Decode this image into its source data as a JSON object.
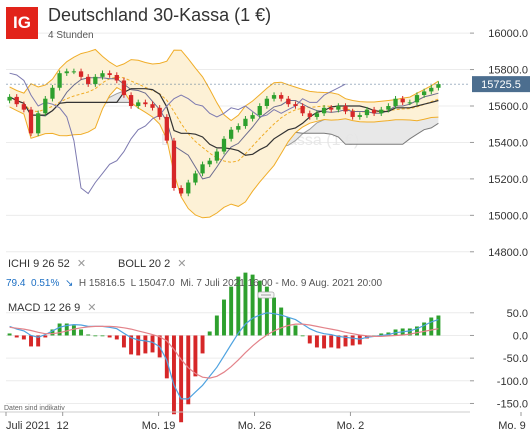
{
  "header": {
    "logo": "IG",
    "title": "Deutschland 30-Kassa (1 €)",
    "subtitle": "4 Stunden",
    "watermark": "Deutschland 30-Kassa (1 €)"
  },
  "indicators": {
    "ichi": {
      "label": "ICHI",
      "p1": "9",
      "p2": "26",
      "p3": "52",
      "close": "✕"
    },
    "boll": {
      "label": "BOLL",
      "p1": "20",
      "p2": "2",
      "close": "✕"
    },
    "macd": {
      "label": "MACD",
      "p1": "12",
      "p2": "26",
      "p3": "9",
      "close": "✕"
    }
  },
  "stats": {
    "change": "79.4",
    "change_pct": "0.51%",
    "high": "H 15816.5",
    "low": "L 15047.0",
    "range": "Mi. 7 Juli 2021 16:00 - Mo. 9 Aug. 2021 20:00"
  },
  "disclaimer": "Daten sind indikativ",
  "colors": {
    "up": "#2ea02e",
    "down": "#d62728",
    "boll_band": "#f0ad28",
    "boll_fill": "#fdf1d6",
    "cloud": "#e6e6e6",
    "price_label": "#4c6e8f",
    "macd_line": "#4fa3e0",
    "signal_line": "#e3838a"
  },
  "chart_data": [
    {
      "type": "line",
      "title": "Deutschland 30-Kassa (1 €)",
      "ylim": [
        14700,
        16050
      ],
      "yticks": [
        16000,
        15800,
        15600,
        15400,
        15200,
        15000,
        14800
      ],
      "current_price": "15725.5",
      "x_labels": [
        "Juli 2021",
        "12",
        "Mo. 19",
        "Mo. 26",
        "Mo. 2",
        "Mo. 9"
      ],
      "series": [
        {
          "values": [
            15650,
            15610,
            15580,
            15450,
            15560,
            15640,
            15700,
            15780,
            15790,
            15790,
            15760,
            15720,
            15760,
            15780,
            15770,
            15740,
            15660,
            15600,
            15620,
            15610,
            15590,
            15540,
            15410,
            15150,
            15120,
            15180,
            15230,
            15280,
            15300,
            15350,
            15420,
            15470,
            15490,
            15530,
            15550,
            15600,
            15640,
            15660,
            15640,
            15610,
            15600,
            15560,
            15540,
            15560,
            15590,
            15580,
            15600,
            15570,
            15540,
            15550,
            15580,
            15560,
            15580,
            15600,
            15640,
            15620,
            15620,
            15660,
            15680,
            15700,
            15720
          ]
        }
      ]
    },
    {
      "type": "bar",
      "title": "MACD 12 26 9",
      "ylim": [
        -160,
        65
      ],
      "yticks": [
        50,
        0,
        -50,
        -100,
        -150
      ],
      "series": [
        {
          "name": "MACD",
          "values": [
            20,
            14,
            10,
            0,
            -4,
            2,
            10,
            18,
            22,
            24,
            23,
            20,
            20,
            20,
            18,
            15,
            5,
            -5,
            -10,
            -12,
            -15,
            -25,
            -55,
            -110,
            -140,
            -140,
            -125,
            -110,
            -90,
            -70,
            -45,
            -20,
            5,
            25,
            38,
            45,
            50,
            48,
            45,
            40,
            35,
            25,
            15,
            8,
            4,
            2,
            -2,
            -4,
            -6,
            -8,
            -4,
            -2,
            0,
            2,
            6,
            8,
            10,
            15,
            22,
            30,
            35
          ]
        },
        {
          "name": "Signal",
          "values": [
            18,
            16,
            14,
            11,
            7,
            4,
            4,
            6,
            10,
            14,
            17,
            19,
            20,
            20,
            20,
            19,
            17,
            14,
            10,
            6,
            2,
            -3,
            -12,
            -31,
            -53,
            -71,
            -84,
            -92,
            -94,
            -90,
            -81,
            -69,
            -54,
            -38,
            -23,
            -10,
            1,
            10,
            17,
            22,
            25,
            25,
            23,
            20,
            17,
            14,
            11,
            7,
            4,
            1,
            -1,
            -2,
            -2,
            -1,
            0,
            1,
            3,
            6,
            9,
            12,
            15
          ]
        }
      ]
    }
  ]
}
